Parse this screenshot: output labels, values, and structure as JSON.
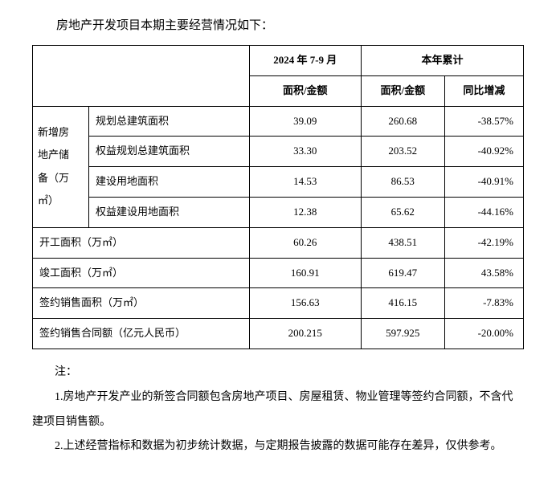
{
  "intro": "房地产开发项目本期主要经营情况如下：",
  "headers": {
    "period": "2024 年 7-9 月",
    "ytd": "本年累计",
    "area_amount": "面积/金额",
    "area_amount2": "面积/金额",
    "yoy": "同比增减"
  },
  "group_label_l1": "新增房",
  "group_label_l2": "地产储",
  "group_label_l3": "备（万",
  "group_label_l4": "㎡）",
  "rows": {
    "r1": {
      "label": "规划总建筑面积",
      "q": "39.09",
      "ytd": "260.68",
      "yoy": "-38.57%"
    },
    "r2": {
      "label": "权益规划总建筑面积",
      "q": "33.30",
      "ytd": "203.52",
      "yoy": "-40.92%"
    },
    "r3": {
      "label": "建设用地面积",
      "q": "14.53",
      "ytd": "86.53",
      "yoy": "-40.91%"
    },
    "r4": {
      "label": "权益建设用地面积",
      "q": "12.38",
      "ytd": "65.62",
      "yoy": "-44.16%"
    },
    "r5": {
      "label": "开工面积（万㎡）",
      "q": "60.26",
      "ytd": "438.51",
      "yoy": "-42.19%"
    },
    "r6": {
      "label": "竣工面积（万㎡）",
      "q": "160.91",
      "ytd": "619.47",
      "yoy": "43.58%"
    },
    "r7": {
      "label": "签约销售面积（万㎡）",
      "q": "156.63",
      "ytd": "416.15",
      "yoy": "-7.83%"
    },
    "r8": {
      "label": "签约销售合同额（亿元人民币）",
      "q": "200.215",
      "ytd": "597.925",
      "yoy": "-20.00%"
    }
  },
  "notes": {
    "title": "注：",
    "n1": "1.房地产开发产业的新签合同额包含房地产项目、房屋租赁、物业管理等签约合同额，不含代建项目销售额。",
    "n2": "2.上述经营指标和数据为初步统计数据，与定期报告披露的数据可能存在差异，仅供参考。"
  }
}
